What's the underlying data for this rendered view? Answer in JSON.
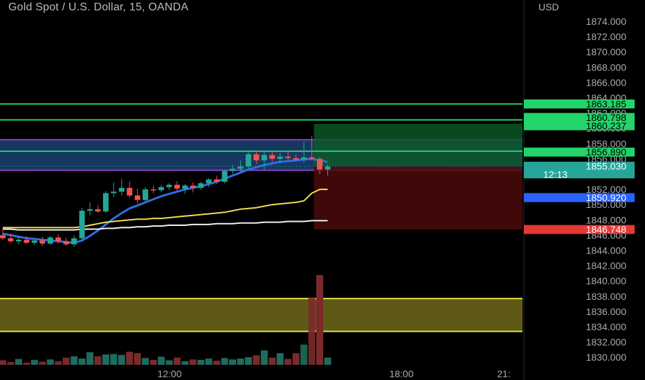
{
  "header": {
    "title": "Gold Spot / U.S. Dollar, 15, OANDA",
    "currency": "USD"
  },
  "chart_data": {
    "type": "candlestick",
    "symbol": "Gold Spot / U.S. Dollar",
    "interval": "15",
    "source": "OANDA",
    "ylim": [
      1829.0,
      1875.0
    ],
    "price_ticks": [
      1874.0,
      1872.0,
      1870.0,
      1868.0,
      1866.0,
      1864.0,
      1862.0,
      1860.0,
      1858.0,
      1856.0,
      1854.0,
      1852.0,
      1850.0,
      1848.0,
      1846.0,
      1844.0,
      1842.0,
      1840.0,
      1838.0,
      1836.0,
      1834.0,
      1832.0,
      1830.0
    ],
    "time_labels": [
      "12:00",
      "18:00",
      "21:"
    ],
    "candles": [
      {
        "o": 1846.0,
        "h": 1846.8,
        "l": 1845.4,
        "c": 1845.6
      },
      {
        "o": 1845.6,
        "h": 1846.2,
        "l": 1845.0,
        "c": 1845.2
      },
      {
        "o": 1845.2,
        "h": 1845.8,
        "l": 1844.8,
        "c": 1845.4
      },
      {
        "o": 1845.4,
        "h": 1845.9,
        "l": 1844.9,
        "c": 1845.0
      },
      {
        "o": 1845.0,
        "h": 1845.6,
        "l": 1844.7,
        "c": 1845.3
      },
      {
        "o": 1845.3,
        "h": 1845.8,
        "l": 1844.6,
        "c": 1844.9
      },
      {
        "o": 1844.9,
        "h": 1845.9,
        "l": 1844.7,
        "c": 1845.7
      },
      {
        "o": 1845.7,
        "h": 1846.1,
        "l": 1844.9,
        "c": 1845.2
      },
      {
        "o": 1845.2,
        "h": 1845.7,
        "l": 1844.6,
        "c": 1844.8
      },
      {
        "o": 1844.8,
        "h": 1846.0,
        "l": 1844.5,
        "c": 1845.6
      },
      {
        "o": 1845.6,
        "h": 1849.6,
        "l": 1845.4,
        "c": 1849.2
      },
      {
        "o": 1849.2,
        "h": 1850.3,
        "l": 1848.6,
        "c": 1849.4
      },
      {
        "o": 1849.4,
        "h": 1849.9,
        "l": 1848.9,
        "c": 1849.1
      },
      {
        "o": 1849.1,
        "h": 1851.8,
        "l": 1848.9,
        "c": 1851.5
      },
      {
        "o": 1851.5,
        "h": 1852.9,
        "l": 1851.0,
        "c": 1851.7
      },
      {
        "o": 1851.7,
        "h": 1853.4,
        "l": 1851.2,
        "c": 1852.2
      },
      {
        "o": 1852.2,
        "h": 1853.0,
        "l": 1850.9,
        "c": 1851.2
      },
      {
        "o": 1851.2,
        "h": 1852.1,
        "l": 1850.2,
        "c": 1850.6
      },
      {
        "o": 1850.6,
        "h": 1852.3,
        "l": 1850.4,
        "c": 1852.0
      },
      {
        "o": 1852.0,
        "h": 1852.5,
        "l": 1851.5,
        "c": 1851.9
      },
      {
        "o": 1851.9,
        "h": 1852.6,
        "l": 1851.6,
        "c": 1852.3
      },
      {
        "o": 1852.3,
        "h": 1852.8,
        "l": 1851.9,
        "c": 1852.6
      },
      {
        "o": 1852.6,
        "h": 1853.1,
        "l": 1851.8,
        "c": 1852.1
      },
      {
        "o": 1852.1,
        "h": 1852.7,
        "l": 1851.4,
        "c": 1852.5
      },
      {
        "o": 1852.5,
        "h": 1852.9,
        "l": 1851.6,
        "c": 1852.2
      },
      {
        "o": 1852.2,
        "h": 1853.0,
        "l": 1851.9,
        "c": 1852.8
      },
      {
        "o": 1852.8,
        "h": 1853.5,
        "l": 1852.3,
        "c": 1853.3
      },
      {
        "o": 1853.3,
        "h": 1853.8,
        "l": 1852.7,
        "c": 1853.0
      },
      {
        "o": 1853.0,
        "h": 1854.6,
        "l": 1852.8,
        "c": 1854.4
      },
      {
        "o": 1854.4,
        "h": 1855.2,
        "l": 1854.0,
        "c": 1854.7
      },
      {
        "o": 1854.7,
        "h": 1855.8,
        "l": 1854.3,
        "c": 1855.0
      },
      {
        "o": 1855.0,
        "h": 1856.9,
        "l": 1854.6,
        "c": 1856.6
      },
      {
        "o": 1856.6,
        "h": 1857.0,
        "l": 1855.3,
        "c": 1855.8
      },
      {
        "o": 1855.8,
        "h": 1856.9,
        "l": 1854.6,
        "c": 1856.5
      },
      {
        "o": 1856.5,
        "h": 1857.0,
        "l": 1855.6,
        "c": 1856.0
      },
      {
        "o": 1856.0,
        "h": 1856.8,
        "l": 1855.4,
        "c": 1856.3
      },
      {
        "o": 1856.3,
        "h": 1856.9,
        "l": 1855.8,
        "c": 1856.1
      },
      {
        "o": 1856.1,
        "h": 1856.6,
        "l": 1855.6,
        "c": 1855.9
      },
      {
        "o": 1855.9,
        "h": 1858.2,
        "l": 1855.5,
        "c": 1856.2
      },
      {
        "o": 1856.2,
        "h": 1859.0,
        "l": 1855.8,
        "c": 1856.0
      },
      {
        "o": 1856.0,
        "h": 1856.3,
        "l": 1854.0,
        "c": 1854.6
      },
      {
        "o": 1854.6,
        "h": 1855.3,
        "l": 1853.8,
        "c": 1855.0
      }
    ],
    "volumes": [
      1.0,
      0.6,
      1.3,
      0.5,
      1.1,
      0.7,
      1.2,
      0.8,
      1.6,
      1.9,
      1.4,
      2.8,
      1.9,
      2.3,
      2.4,
      2.2,
      2.9,
      2.6,
      1.5,
      1.1,
      1.8,
      1.0,
      1.6,
      0.8,
      1.2,
      1.1,
      1.4,
      0.9,
      1.5,
      1.2,
      1.4,
      1.7,
      2.1,
      3.2,
      1.6,
      2.6,
      1.3,
      2.6,
      4.5,
      15.0,
      20.0,
      1.6
    ],
    "moving_averages": [
      {
        "color": "#2f6fe0",
        "values": [
          1846.2,
          1846.0,
          1845.8,
          1845.6,
          1845.5,
          1845.4,
          1845.3,
          1845.2,
          1845.1,
          1845.0,
          1845.3,
          1845.9,
          1846.6,
          1847.4,
          1848.2,
          1848.9,
          1849.5,
          1849.9,
          1850.3,
          1850.7,
          1851.1,
          1851.4,
          1851.7,
          1852.0,
          1852.2,
          1852.4,
          1852.7,
          1853.0,
          1853.4,
          1853.8,
          1854.2,
          1854.6,
          1854.9,
          1855.2,
          1855.4,
          1855.6,
          1855.7,
          1855.8,
          1855.9,
          1856.0,
          1855.8,
          1855.6
        ]
      },
      {
        "color": "#f0e050",
        "values": [
          1847.0,
          1847.0,
          1847.0,
          1847.0,
          1847.0,
          1847.0,
          1847.0,
          1847.0,
          1847.0,
          1847.0,
          1847.1,
          1847.3,
          1847.5,
          1847.7,
          1847.8,
          1847.9,
          1848.0,
          1848.1,
          1848.1,
          1848.2,
          1848.2,
          1848.3,
          1848.4,
          1848.5,
          1848.6,
          1848.7,
          1848.8,
          1848.9,
          1849.0,
          1849.2,
          1849.4,
          1849.5,
          1849.6,
          1849.8,
          1850.0,
          1850.1,
          1850.2,
          1850.3,
          1850.5,
          1851.5,
          1852.0,
          1852.0
        ]
      },
      {
        "color": "#f2f2f2",
        "values": [
          1846.8,
          1846.8,
          1846.7,
          1846.7,
          1846.7,
          1846.7,
          1846.7,
          1846.7,
          1846.7,
          1846.7,
          1846.8,
          1846.8,
          1846.8,
          1846.9,
          1846.9,
          1847.0,
          1847.0,
          1847.1,
          1847.1,
          1847.2,
          1847.2,
          1847.3,
          1847.3,
          1847.3,
          1847.4,
          1847.4,
          1847.4,
          1847.5,
          1847.5,
          1847.5,
          1847.6,
          1847.6,
          1847.6,
          1847.7,
          1847.7,
          1847.7,
          1847.8,
          1847.8,
          1847.8,
          1847.9,
          1847.9,
          1847.9
        ]
      }
    ],
    "horizontal_lines": [
      {
        "price": 1863.185,
        "color": "#22d46a"
      },
      {
        "price": 1861.1,
        "color": "#22d46a"
      },
      {
        "price": 1857.0,
        "color": "#22d46a"
      }
    ],
    "range_band": {
      "top": 1858.5,
      "bottom": 1854.5,
      "fill": "#1f4a80",
      "edge": "#8a3fc8"
    },
    "support_zone": {
      "top": 1837.7,
      "bottom": 1833.4,
      "fill": "#6f6a1a",
      "edge": "#e8e04a"
    },
    "trade_box": {
      "entry": 1855.03,
      "target": 1860.237,
      "stop": 1846.748,
      "start_index": 39
    },
    "price_labels": [
      {
        "text": "1863.185",
        "price": 1863.185,
        "bg": "#22d46a",
        "fg": "#000000"
      },
      {
        "text": "1860.798",
        "price": 1860.798,
        "bg": "#22d46a",
        "fg": "#000000"
      },
      {
        "text": "1860.237",
        "price": 1860.237,
        "bg": "#22d46a",
        "fg": "#000000"
      },
      {
        "text": "1856.890",
        "price": 1856.89,
        "bg": "#22d46a",
        "fg": "#000000"
      },
      {
        "text": "1855.030",
        "price": 1855.03,
        "bg": "#26a69a",
        "fg": "#ffffff",
        "sub": "12:13"
      },
      {
        "text": "1850.920",
        "price": 1850.92,
        "bg": "#2962ff",
        "fg": "#ffffff"
      },
      {
        "text": "1846.748",
        "price": 1846.748,
        "bg": "#e53935",
        "fg": "#ffffff"
      }
    ]
  }
}
